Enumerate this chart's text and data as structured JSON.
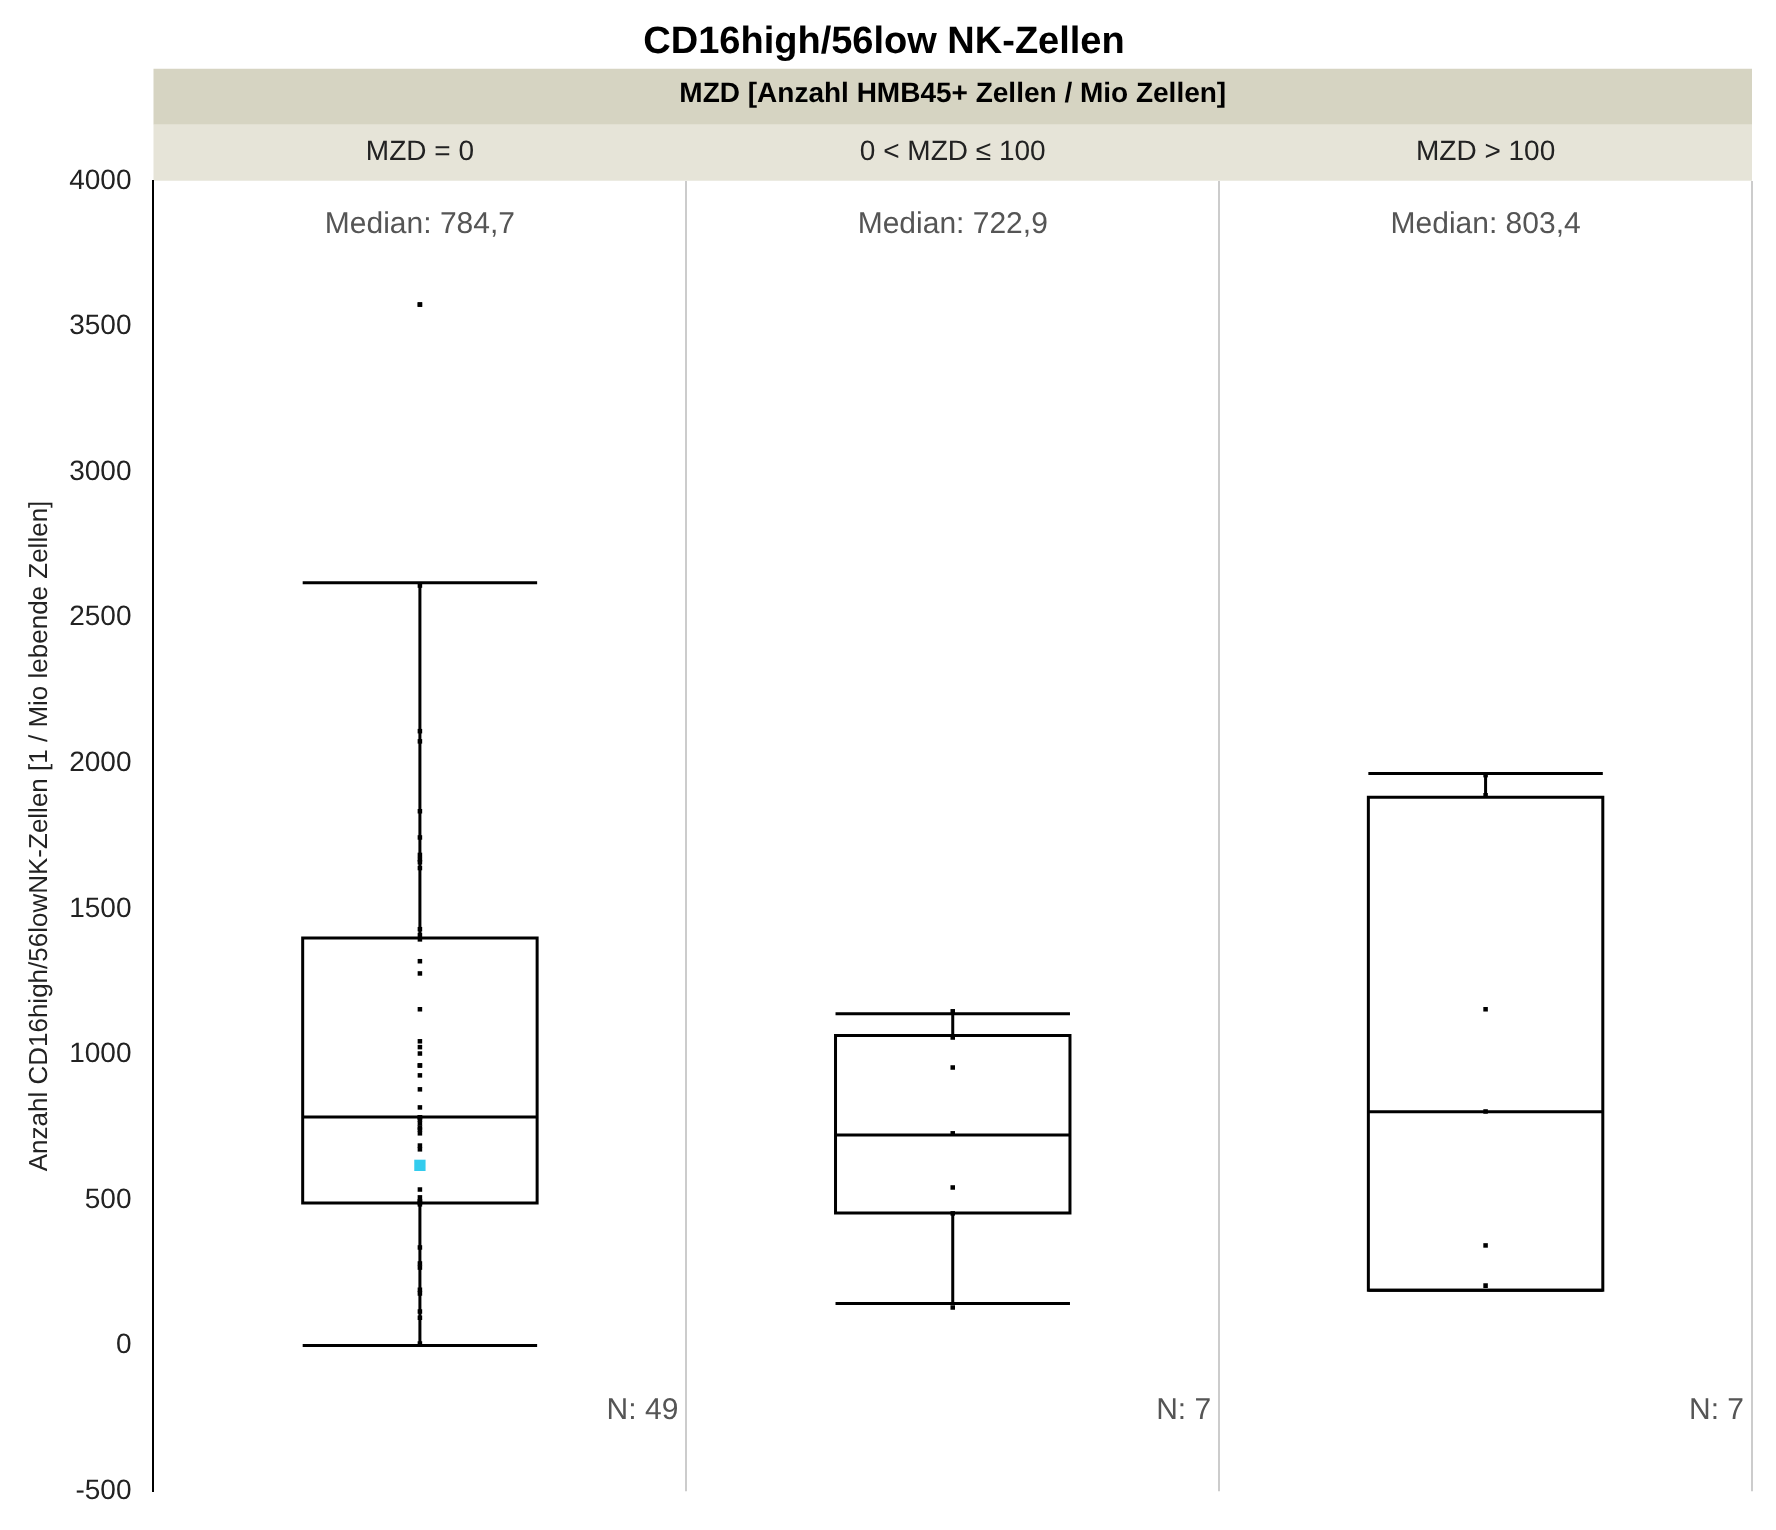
{
  "chart_data": {
    "type": "box",
    "title": "CD16high/56low NK-Zellen",
    "xlabel": "MZD [Anzahl HMB45+ Zellen / Mio Zellen]",
    "ylabel": "Anzahl CD16high/56lowNK-Zellen [1 / Mio lebende Zellen]",
    "categories": [
      "MZD = 0",
      "0 < MZD ≤ 100",
      "MZD > 100"
    ],
    "ylim": [
      -500,
      4000
    ],
    "yticks": [
      -500,
      0,
      500,
      1000,
      1500,
      2000,
      2500,
      3000,
      3500,
      4000
    ],
    "grid": "x",
    "legend": false,
    "series": [
      {
        "color": "#000000",
        "boxes": [
          {
            "low": 0,
            "q1": 490,
            "median": 784.7,
            "q3": 1400,
            "high": 2620
          },
          {
            "low": 145,
            "q1": 455,
            "median": 722.9,
            "q3": 1065,
            "high": 1140
          },
          {
            "low": 190,
            "q1": 190,
            "median": 803.4,
            "q3": 1883,
            "high": 1965
          }
        ]
      },
      {
        "type": "scatter",
        "color": "#000000",
        "x": [
          "MZD = 0",
          "MZD = 0",
          "MZD = 0",
          "MZD = 0",
          "MZD = 0",
          "MZD = 0",
          "MZD = 0",
          "MZD = 0",
          "MZD = 0",
          "MZD = 0",
          "MZD = 0",
          "MZD = 0",
          "MZD = 0",
          "MZD = 0",
          "MZD = 0",
          "MZD = 0",
          "MZD = 0",
          "MZD = 0",
          "MZD = 0",
          "MZD = 0",
          "MZD = 0",
          "MZD = 0",
          "MZD = 0",
          "MZD = 0",
          "MZD = 0",
          "MZD = 0",
          "MZD = 0",
          "MZD = 0",
          "MZD = 0",
          "MZD = 0",
          "MZD = 0",
          "MZD = 0",
          "MZD = 0",
          "MZD = 0",
          "MZD = 0",
          "MZD = 0",
          "MZD = 0",
          "MZD = 0",
          "MZD = 0",
          "MZD = 0",
          "MZD = 0",
          "MZD = 0",
          "MZD = 0",
          "MZD = 0",
          "MZD = 0",
          "MZD = 0",
          "MZD = 0",
          "MZD = 0",
          "0 < MZD ≤ 100",
          "0 < MZD ≤ 100",
          "0 < MZD ≤ 100",
          "0 < MZD ≤ 100",
          "0 < MZD ≤ 100",
          "0 < MZD ≤ 100",
          "0 < MZD ≤ 100",
          "MZD > 100",
          "MZD > 100",
          "MZD > 100",
          "MZD > 100",
          "MZD > 100",
          "MZD > 100"
        ],
        "values": [
          3575,
          3575,
          2610,
          2110,
          2075,
          1835,
          1745,
          1685,
          1670,
          1660,
          1640,
          1430,
          1410,
          1395,
          1320,
          1278,
          1155,
          1045,
          1025,
          1003,
          962,
          962,
          928,
          880,
          818,
          784,
          784,
          776,
          763,
          749,
          742,
          729,
          687,
          674,
          536,
          509,
          495,
          495,
          490,
          485,
          337,
          282,
          268,
          192,
          179,
          117,
          96,
          7,
          1148,
          1058,
          955,
          729,
          543,
          454,
          131,
          1959,
          1890,
          1155,
          804,
          344,
          206
        ]
      },
      {
        "type": "scatter",
        "color": "#33ccee",
        "x": [
          "MZD = 0"
        ],
        "values": [
          619
        ]
      }
    ],
    "annotations": [
      "Median: 784,7",
      "Median: 722,9",
      "Median: 803,4",
      "N: 49",
      "N: 7",
      "N: 7"
    ]
  }
}
